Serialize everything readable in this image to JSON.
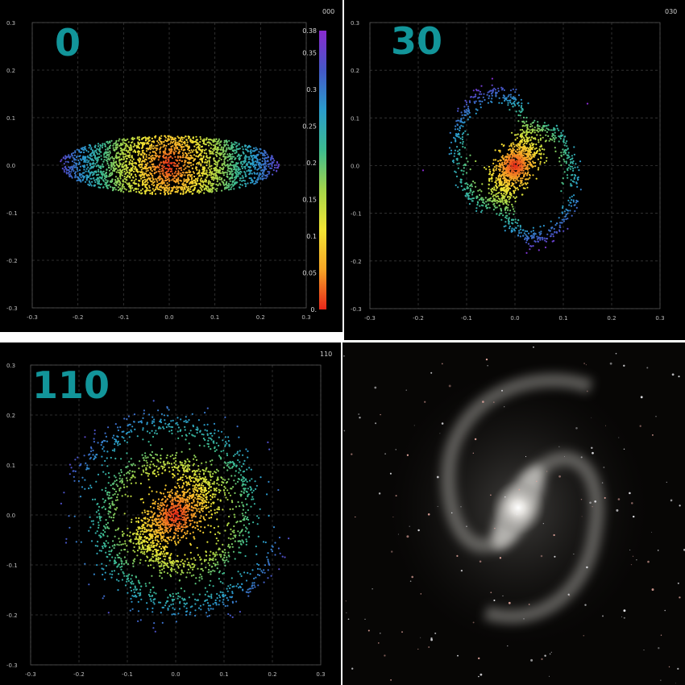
{
  "panels": [
    {
      "id": "p1",
      "big_label": "0",
      "tag": "000",
      "kind": "disk"
    },
    {
      "id": "p2",
      "big_label": "30",
      "tag": "030",
      "kind": "bar"
    },
    {
      "id": "p3",
      "big_label": "110",
      "tag": "110",
      "kind": "spiral"
    }
  ],
  "axes": {
    "xlim": [
      -0.3,
      0.3
    ],
    "ylim": [
      -0.3,
      0.3
    ],
    "ticks": [
      "-0.3",
      "-0.2",
      "-0.1",
      "0.0",
      "0.1",
      "0.2",
      "0.3"
    ],
    "grid": "dashed"
  },
  "colorbar": {
    "min": 0,
    "max": 0.38,
    "tick_labels": [
      "0.",
      "0.05",
      "0.1",
      "0.15",
      "0.2",
      "0.25",
      "0.3",
      "0.35",
      "0.38"
    ],
    "colors": [
      "#e8261a",
      "#f7a526",
      "#f2e534",
      "#a4d64a",
      "#3dbb8f",
      "#2a9ccc",
      "#4458c6",
      "#8a2ad0"
    ]
  },
  "photo": {
    "kind": "barred spiral galaxy photograph"
  },
  "chart_data": [
    {
      "type": "scatter",
      "panel": "0",
      "xlim": [
        -0.3,
        0.3
      ],
      "ylim": [
        -0.3,
        0.3
      ],
      "shape": "flat elliptical disk",
      "x_extent": [
        -0.24,
        0.24
      ],
      "y_extent": [
        -0.06,
        0.06
      ]
    },
    {
      "type": "scatter",
      "panel": "30",
      "xlim": [
        -0.3,
        0.3
      ],
      "ylim": [
        -0.3,
        0.3
      ],
      "shape": "central bar with two spiral arms",
      "x_extent": [
        -0.14,
        0.14
      ],
      "y_extent": [
        -0.17,
        0.17
      ]
    },
    {
      "type": "scatter",
      "panel": "110",
      "xlim": [
        -0.3,
        0.3
      ],
      "ylim": [
        -0.3,
        0.3
      ],
      "shape": "diagonal bar with extended spiral arms",
      "x_extent": [
        -0.23,
        0.23
      ],
      "y_extent": [
        -0.23,
        0.23
      ]
    }
  ]
}
